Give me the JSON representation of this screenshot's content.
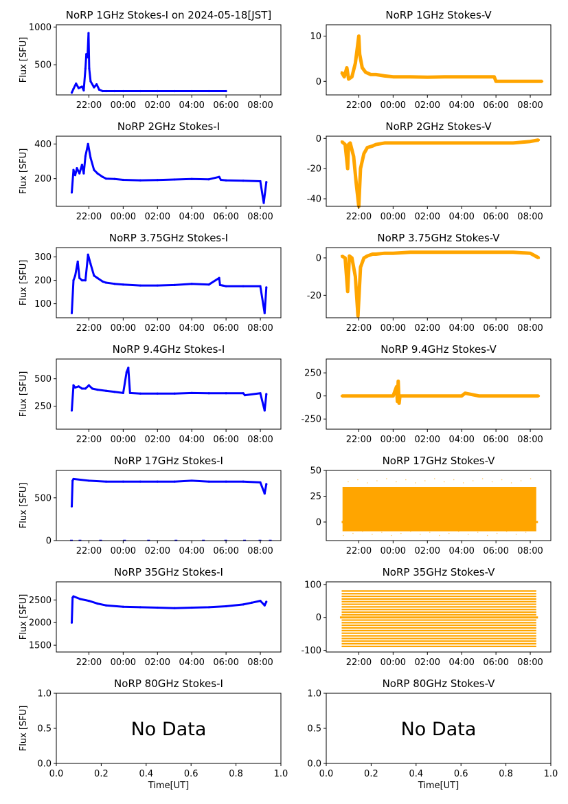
{
  "figure": {
    "ylabel": "Flux [SFU]",
    "xlabel_bottom": "Time[UT]",
    "no_data_text": "No Data",
    "colors": {
      "stokes_i": "#0000ff",
      "stokes_v": "#ffa500",
      "axis": "#000000",
      "background": "#ffffff"
    }
  },
  "chart_data": [
    {
      "id": "i1",
      "type": "scatter",
      "title": "NoRP 1GHz Stokes-I on 2024-05-18[JST]",
      "ylabel": "Flux [SFU]",
      "x_unit": "hours since 00:00 UT (negative = previous day)",
      "xlim": [
        -3.9,
        9.2
      ],
      "x_ticks": [
        "22:00",
        "00:00",
        "02:00",
        "04:00",
        "06:00",
        "08:00"
      ],
      "y_ticks": [
        500,
        1000
      ],
      "ylim": [
        100,
        1030
      ],
      "series": [
        {
          "color": "#0000ff",
          "x": [
            -3.0,
            -2.9,
            -2.75,
            -2.6,
            -2.5,
            -2.4,
            -2.3,
            -2.2,
            -2.15,
            -2.08,
            -2.02,
            -1.98,
            -1.9,
            -1.7,
            -1.55,
            -1.4,
            -1.2,
            -1.0,
            -0.5,
            0,
            1,
            2,
            3,
            4,
            5,
            6.0
          ],
          "y": [
            130,
            180,
            250,
            190,
            200,
            210,
            160,
            450,
            640,
            600,
            920,
            450,
            280,
            200,
            240,
            170,
            150,
            150,
            150,
            150,
            150,
            150,
            150,
            150,
            150,
            150
          ]
        }
      ]
    },
    {
      "id": "v1",
      "type": "scatter",
      "title": "NoRP 1GHz Stokes-V",
      "x_unit": "hours since 00:00 UT (negative = previous day)",
      "xlim": [
        -3.9,
        9.2
      ],
      "x_ticks": [
        "22:00",
        "00:00",
        "02:00",
        "04:00",
        "06:00",
        "08:00"
      ],
      "y_ticks": [
        0,
        10
      ],
      "ylim": [
        -3,
        12.5
      ],
      "series": [
        {
          "color": "#ffa500",
          "x": [
            -3.0,
            -2.85,
            -2.7,
            -2.6,
            -2.4,
            -2.2,
            -2.1,
            -2.0,
            -1.95,
            -1.8,
            -1.6,
            -1.3,
            -1,
            -0.5,
            0,
            1,
            2,
            3,
            4,
            5,
            5.9,
            6.0,
            7,
            8,
            8.7
          ],
          "y": [
            2,
            1,
            3,
            0.5,
            1,
            4,
            7,
            10,
            6,
            3,
            2,
            1.5,
            1.5,
            1.2,
            1.0,
            1.0,
            0.9,
            1.0,
            1.0,
            1.0,
            1.0,
            0.0,
            0.0,
            0.0,
            0.0
          ]
        }
      ]
    },
    {
      "id": "i2",
      "type": "scatter",
      "title": "NoRP 2GHz Stokes-I",
      "ylabel": "Flux [SFU]",
      "x_unit": "hours since 00:00 UT (negative = previous day)",
      "xlim": [
        -3.9,
        9.2
      ],
      "x_ticks": [
        "22:00",
        "00:00",
        "02:00",
        "04:00",
        "06:00",
        "08:00"
      ],
      "y_ticks": [
        200,
        400
      ],
      "ylim": [
        40,
        445
      ],
      "series": [
        {
          "color": "#0000ff",
          "x": [
            -3.0,
            -2.9,
            -2.8,
            -2.7,
            -2.55,
            -2.4,
            -2.3,
            -2.2,
            -2.05,
            -1.9,
            -1.7,
            -1.5,
            -1.2,
            -1.0,
            -0.5,
            0,
            1,
            2,
            3,
            4,
            5,
            5.6,
            5.7,
            6,
            7,
            8,
            8.2,
            8.35
          ],
          "y": [
            120,
            250,
            220,
            260,
            230,
            280,
            230,
            330,
            400,
            320,
            250,
            230,
            210,
            200,
            198,
            193,
            190,
            192,
            195,
            198,
            196,
            210,
            193,
            190,
            188,
            185,
            60,
            180
          ]
        }
      ]
    },
    {
      "id": "v2",
      "type": "scatter",
      "title": "NoRP 2GHz Stokes-V",
      "x_unit": "hours since 00:00 UT (negative = previous day)",
      "xlim": [
        -3.9,
        9.2
      ],
      "x_ticks": [
        "22:00",
        "00:00",
        "02:00",
        "04:00",
        "06:00",
        "08:00"
      ],
      "y_ticks": [
        -40,
        -20,
        0
      ],
      "ylim": [
        -45,
        1.5
      ],
      "series": [
        {
          "color": "#ffa500",
          "x": [
            -3.0,
            -2.8,
            -2.65,
            -2.6,
            -2.5,
            -2.3,
            -2.15,
            -2.0,
            -1.9,
            -1.7,
            -1.5,
            -1.2,
            -1,
            -0.5,
            0,
            1,
            2,
            3,
            4,
            5,
            6,
            7,
            8,
            8.5
          ],
          "y": [
            -2,
            -4,
            -20,
            -4,
            -3,
            -12,
            -30,
            -45,
            -20,
            -10,
            -6,
            -5,
            -4,
            -3,
            -3,
            -3,
            -3,
            -3,
            -3,
            -3,
            -3,
            -3,
            -2,
            -1
          ]
        }
      ]
    },
    {
      "id": "i3",
      "type": "scatter",
      "title": "NoRP 3.75GHz Stokes-I",
      "ylabel": "Flux [SFU]",
      "x_unit": "hours since 00:00 UT (negative = previous day)",
      "xlim": [
        -3.9,
        9.2
      ],
      "x_ticks": [
        "22:00",
        "00:00",
        "02:00",
        "04:00",
        "06:00",
        "08:00"
      ],
      "y_ticks": [
        100,
        200,
        300
      ],
      "ylim": [
        40,
        340
      ],
      "series": [
        {
          "color": "#0000ff",
          "x": [
            -3.0,
            -2.9,
            -2.8,
            -2.65,
            -2.55,
            -2.4,
            -2.2,
            -2.05,
            -1.9,
            -1.7,
            -1.5,
            -1.2,
            -1.0,
            -0.5,
            0,
            1,
            2,
            3,
            4,
            5,
            5.6,
            5.65,
            5.8,
            6,
            7,
            8,
            8.25,
            8.35
          ],
          "y": [
            60,
            200,
            220,
            280,
            210,
            200,
            200,
            310,
            270,
            220,
            210,
            195,
            190,
            185,
            182,
            178,
            178,
            180,
            185,
            182,
            210,
            180,
            178,
            175,
            175,
            175,
            60,
            170
          ]
        }
      ]
    },
    {
      "id": "v3",
      "type": "scatter",
      "title": "NoRP 3.75GHz Stokes-V",
      "x_unit": "hours since 00:00 UT (negative = previous day)",
      "xlim": [
        -3.9,
        9.2
      ],
      "x_ticks": [
        "22:00",
        "00:00",
        "02:00",
        "04:00",
        "06:00",
        "08:00"
      ],
      "y_ticks": [
        -20,
        0
      ],
      "ylim": [
        -32,
        5.5
      ],
      "series": [
        {
          "color": "#ffa500",
          "x": [
            -3.0,
            -2.8,
            -2.65,
            -2.55,
            -2.4,
            -2.2,
            -2.05,
            -1.9,
            -1.7,
            -1.5,
            -1.2,
            -1,
            -0.5,
            0,
            1,
            2,
            3,
            4,
            5,
            6,
            7,
            8,
            8.5
          ],
          "y": [
            1,
            0,
            -18,
            1,
            0,
            -10,
            -31,
            -5,
            0,
            1,
            2,
            2,
            2.5,
            2.5,
            3,
            3,
            3,
            3,
            3,
            3,
            3,
            2.5,
            0
          ]
        }
      ]
    },
    {
      "id": "i4",
      "type": "scatter",
      "title": "NoRP 9.4GHz Stokes-I",
      "ylabel": "Flux [SFU]",
      "x_unit": "hours since 00:00 UT (negative = previous day)",
      "xlim": [
        -3.9,
        9.2
      ],
      "x_ticks": [
        "22:00",
        "00:00",
        "02:00",
        "04:00",
        "06:00",
        "08:00"
      ],
      "y_ticks": [
        250,
        500
      ],
      "ylim": [
        40,
        680
      ],
      "series": [
        {
          "color": "#0000ff",
          "x": [
            -3.0,
            -2.9,
            -2.8,
            -2.6,
            -2.4,
            -2.2,
            -2.0,
            -1.8,
            -1.5,
            -1.0,
            -0.5,
            0,
            0.2,
            0.3,
            0.4,
            1,
            2,
            3,
            4,
            5,
            6,
            7,
            7.1,
            8,
            8.25,
            8.35
          ],
          "y": [
            210,
            440,
            420,
            430,
            410,
            410,
            440,
            410,
            400,
            390,
            380,
            370,
            560,
            600,
            370,
            365,
            365,
            365,
            370,
            368,
            368,
            368,
            350,
            368,
            210,
            360
          ]
        }
      ]
    },
    {
      "id": "v4",
      "type": "scatter",
      "title": "NoRP 9.4GHz Stokes-V",
      "x_unit": "hours since 00:00 UT (negative = previous day)",
      "xlim": [
        -3.9,
        9.2
      ],
      "x_ticks": [
        "22:00",
        "00:00",
        "02:00",
        "04:00",
        "06:00",
        "08:00"
      ],
      "y_ticks": [
        -250,
        0,
        250
      ],
      "ylim": [
        -360,
        400
      ],
      "series": [
        {
          "color": "#ffa500",
          "x": [
            -3.0,
            -2,
            -1,
            0,
            0.2,
            0.25,
            0.3,
            0.35,
            0.4,
            1,
            2,
            3,
            4,
            4.2,
            5,
            6,
            7,
            8,
            8.5
          ],
          "y": [
            0,
            0,
            0,
            0,
            100,
            -60,
            160,
            -80,
            0,
            0,
            0,
            0,
            0,
            30,
            0,
            0,
            0,
            0,
            0
          ]
        }
      ]
    },
    {
      "id": "i5",
      "type": "scatter",
      "title": "NoRP 17GHz Stokes-I",
      "ylabel": "Flux [SFU]",
      "x_unit": "hours since 00:00 UT (negative = previous day)",
      "xlim": [
        -3.9,
        9.2
      ],
      "x_ticks": [
        "22:00",
        "00:00",
        "02:00",
        "04:00",
        "06:00",
        "08:00"
      ],
      "y_ticks": [
        0,
        500
      ],
      "ylim": [
        0,
        820
      ],
      "series": [
        {
          "color": "#0000ff",
          "x": [
            -3.0,
            -2.95,
            -2.9,
            -2,
            -1,
            0,
            1,
            2,
            3,
            4,
            5,
            6,
            7,
            8,
            8.25,
            8.35
          ],
          "y": [
            400,
            700,
            720,
            700,
            690,
            690,
            690,
            690,
            690,
            700,
            690,
            690,
            690,
            680,
            550,
            660
          ]
        }
      ]
    },
    {
      "id": "v5",
      "type": "scatter",
      "title": "NoRP 17GHz Stokes-V",
      "x_unit": "hours since 00:00 UT (negative = previous day)",
      "xlim": [
        -3.9,
        9.2
      ],
      "x_ticks": [
        "22:00",
        "00:00",
        "02:00",
        "04:00",
        "06:00",
        "08:00"
      ],
      "y_ticks": [
        0,
        25,
        50
      ],
      "ylim": [
        -18,
        50
      ],
      "series": [
        {
          "color": "#ffa500",
          "x": [
            -3.0,
            -2,
            -1,
            0,
            1,
            2,
            3,
            4,
            5,
            6,
            7,
            8,
            8.4
          ],
          "y": [
            12,
            12,
            12,
            12,
            12,
            12,
            12,
            12,
            12,
            12,
            12,
            12,
            12
          ]
        }
      ]
    },
    {
      "id": "i6",
      "type": "scatter",
      "title": "NoRP 35GHz Stokes-I",
      "ylabel": "Flux [SFU]",
      "x_unit": "hours since 00:00 UT (negative = previous day)",
      "xlim": [
        -3.9,
        9.2
      ],
      "x_ticks": [
        "22:00",
        "00:00",
        "02:00",
        "04:00",
        "06:00",
        "08:00"
      ],
      "y_ticks": [
        1500,
        2000,
        2500
      ],
      "ylim": [
        1350,
        2900
      ],
      "series": [
        {
          "color": "#0000ff",
          "x": [
            -3.0,
            -2.95,
            -2.9,
            -2.5,
            -2,
            -1.5,
            -1,
            0,
            1,
            2,
            3,
            4,
            5,
            6,
            7,
            7.5,
            8,
            8.25,
            8.35
          ],
          "y": [
            2000,
            2550,
            2580,
            2520,
            2480,
            2420,
            2380,
            2350,
            2340,
            2330,
            2320,
            2330,
            2340,
            2360,
            2400,
            2440,
            2480,
            2380,
            2460
          ]
        }
      ]
    },
    {
      "id": "v6",
      "type": "scatter",
      "title": "NoRP 35GHz Stokes-V",
      "x_unit": "hours since 00:00 UT (negative = previous day)",
      "xlim": [
        -3.9,
        9.2
      ],
      "x_ticks": [
        "22:00",
        "00:00",
        "02:00",
        "04:00",
        "06:00",
        "08:00"
      ],
      "y_ticks": [
        -100,
        0,
        100
      ],
      "ylim": [
        -105,
        108
      ],
      "series": [
        {
          "color": "#ffa500",
          "x": [
            -3.0,
            -2,
            -1,
            0,
            1,
            2,
            3,
            4,
            5,
            6,
            7,
            8,
            8.4
          ],
          "y": [
            0,
            0,
            0,
            0,
            0,
            0,
            0,
            0,
            0,
            0,
            0,
            0,
            0
          ]
        }
      ]
    },
    {
      "id": "i7",
      "type": "scatter",
      "title": "NoRP 80GHz Stokes-I",
      "ylabel": "Flux [SFU]",
      "xlabel": "Time[UT]",
      "xlim": [
        0,
        1
      ],
      "ylim": [
        0,
        1
      ],
      "x_ticks": [
        "0.0",
        "0.2",
        "0.4",
        "0.6",
        "0.8",
        "1.0"
      ],
      "y_ticks": [
        "0.0",
        "0.5",
        "1.0"
      ],
      "annotation": "No Data",
      "series": []
    },
    {
      "id": "v7",
      "type": "scatter",
      "title": "NoRP 80GHz Stokes-V",
      "xlabel": "Time[UT]",
      "xlim": [
        0,
        1
      ],
      "ylim": [
        0,
        1
      ],
      "x_ticks": [
        "0.0",
        "0.2",
        "0.4",
        "0.6",
        "0.8",
        "1.0"
      ],
      "y_ticks": [
        "0.0",
        "0.5",
        "1.0"
      ],
      "annotation": "No Data",
      "series": []
    }
  ]
}
